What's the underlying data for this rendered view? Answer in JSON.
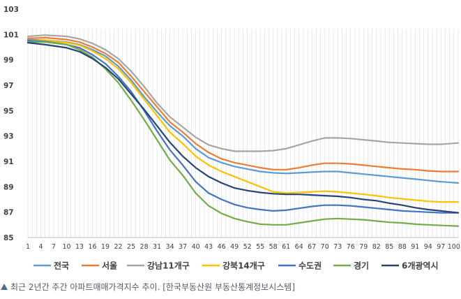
{
  "caption": {
    "text": "최근 2년간 주간 아파트매매가격지수 추이. [한국부동산원 부동산통계정보시스템]"
  },
  "chart_data": {
    "type": "line",
    "title": "",
    "xlabel": "",
    "ylabel": "",
    "xlim": [
      1,
      101
    ],
    "ylim": [
      85,
      103
    ],
    "y_ticks": [
      85,
      87,
      89,
      91,
      93,
      95,
      97,
      99,
      101,
      103
    ],
    "x_ticks": [
      1,
      4,
      7,
      10,
      13,
      16,
      19,
      22,
      25,
      28,
      31,
      34,
      37,
      40,
      43,
      46,
      49,
      52,
      55,
      58,
      61,
      64,
      67,
      70,
      73,
      76,
      79,
      82,
      85,
      88,
      91,
      94,
      97,
      100
    ],
    "grid": "vertical",
    "legend": "bottom",
    "series": [
      {
        "name": "전국",
        "color": "#5b9bd5",
        "points": [
          [
            1,
            100.6
          ],
          [
            5,
            100.55
          ],
          [
            10,
            100.4
          ],
          [
            13,
            100.2
          ],
          [
            16,
            99.8
          ],
          [
            19,
            99.3
          ],
          [
            22,
            98.5
          ],
          [
            25,
            97.4
          ],
          [
            28,
            96.1
          ],
          [
            31,
            94.9
          ],
          [
            34,
            93.8
          ],
          [
            37,
            93.0
          ],
          [
            40,
            92.0
          ],
          [
            43,
            91.3
          ],
          [
            46,
            90.9
          ],
          [
            49,
            90.6
          ],
          [
            52,
            90.4
          ],
          [
            55,
            90.2
          ],
          [
            58,
            90.1
          ],
          [
            61,
            90.05
          ],
          [
            64,
            90.1
          ],
          [
            67,
            90.15
          ],
          [
            70,
            90.2
          ],
          [
            73,
            90.2
          ],
          [
            76,
            90.1
          ],
          [
            79,
            90.0
          ],
          [
            82,
            89.9
          ],
          [
            85,
            89.8
          ],
          [
            88,
            89.7
          ],
          [
            91,
            89.6
          ],
          [
            94,
            89.5
          ],
          [
            97,
            89.4
          ],
          [
            101,
            89.3
          ]
        ]
      },
      {
        "name": "서울",
        "color": "#ed7d31",
        "points": [
          [
            1,
            100.7
          ],
          [
            5,
            100.75
          ],
          [
            10,
            100.6
          ],
          [
            13,
            100.4
          ],
          [
            16,
            100.0
          ],
          [
            19,
            99.5
          ],
          [
            22,
            98.8
          ],
          [
            25,
            97.7
          ],
          [
            28,
            96.5
          ],
          [
            31,
            95.3
          ],
          [
            34,
            94.1
          ],
          [
            37,
            93.3
          ],
          [
            40,
            92.4
          ],
          [
            43,
            91.7
          ],
          [
            46,
            91.2
          ],
          [
            49,
            90.9
          ],
          [
            52,
            90.7
          ],
          [
            55,
            90.5
          ],
          [
            58,
            90.35
          ],
          [
            61,
            90.35
          ],
          [
            64,
            90.5
          ],
          [
            67,
            90.7
          ],
          [
            70,
            90.85
          ],
          [
            73,
            90.85
          ],
          [
            76,
            90.8
          ],
          [
            79,
            90.7
          ],
          [
            82,
            90.6
          ],
          [
            85,
            90.5
          ],
          [
            88,
            90.4
          ],
          [
            91,
            90.35
          ],
          [
            94,
            90.25
          ],
          [
            97,
            90.2
          ],
          [
            101,
            90.2
          ]
        ]
      },
      {
        "name": "강남11개구",
        "color": "#a5a5a5",
        "points": [
          [
            1,
            100.85
          ],
          [
            5,
            100.95
          ],
          [
            10,
            100.85
          ],
          [
            13,
            100.65
          ],
          [
            16,
            100.3
          ],
          [
            19,
            99.8
          ],
          [
            22,
            99.1
          ],
          [
            25,
            98.1
          ],
          [
            28,
            96.9
          ],
          [
            31,
            95.6
          ],
          [
            34,
            94.5
          ],
          [
            37,
            93.7
          ],
          [
            40,
            92.9
          ],
          [
            43,
            92.3
          ],
          [
            46,
            92.0
          ],
          [
            49,
            91.8
          ],
          [
            52,
            91.8
          ],
          [
            55,
            91.8
          ],
          [
            58,
            91.85
          ],
          [
            61,
            92.0
          ],
          [
            64,
            92.3
          ],
          [
            67,
            92.6
          ],
          [
            70,
            92.85
          ],
          [
            73,
            92.85
          ],
          [
            76,
            92.8
          ],
          [
            79,
            92.7
          ],
          [
            82,
            92.6
          ],
          [
            85,
            92.5
          ],
          [
            88,
            92.45
          ],
          [
            91,
            92.4
          ],
          [
            94,
            92.35
          ],
          [
            97,
            92.35
          ],
          [
            101,
            92.45
          ]
        ]
      },
      {
        "name": "강북14개구",
        "color": "#ffc000",
        "points": [
          [
            1,
            100.5
          ],
          [
            5,
            100.55
          ],
          [
            10,
            100.35
          ],
          [
            13,
            100.15
          ],
          [
            16,
            99.7
          ],
          [
            19,
            99.1
          ],
          [
            22,
            98.3
          ],
          [
            25,
            97.2
          ],
          [
            28,
            95.9
          ],
          [
            31,
            94.6
          ],
          [
            34,
            93.3
          ],
          [
            37,
            92.4
          ],
          [
            40,
            91.4
          ],
          [
            43,
            90.7
          ],
          [
            46,
            90.2
          ],
          [
            49,
            89.8
          ],
          [
            52,
            89.4
          ],
          [
            55,
            89.0
          ],
          [
            58,
            88.6
          ],
          [
            61,
            88.5
          ],
          [
            64,
            88.55
          ],
          [
            67,
            88.6
          ],
          [
            70,
            88.65
          ],
          [
            73,
            88.6
          ],
          [
            76,
            88.5
          ],
          [
            79,
            88.4
          ],
          [
            82,
            88.3
          ],
          [
            85,
            88.15
          ],
          [
            88,
            88.05
          ],
          [
            91,
            87.95
          ],
          [
            94,
            87.85
          ],
          [
            97,
            87.8
          ],
          [
            101,
            87.8
          ]
        ]
      },
      {
        "name": "수도권",
        "color": "#4472c4",
        "points": [
          [
            1,
            100.5
          ],
          [
            5,
            100.45
          ],
          [
            10,
            100.2
          ],
          [
            13,
            99.95
          ],
          [
            16,
            99.4
          ],
          [
            19,
            98.7
          ],
          [
            22,
            97.7
          ],
          [
            25,
            96.5
          ],
          [
            28,
            95.0
          ],
          [
            31,
            93.4
          ],
          [
            34,
            91.9
          ],
          [
            37,
            90.7
          ],
          [
            40,
            89.4
          ],
          [
            43,
            88.5
          ],
          [
            46,
            88.0
          ],
          [
            49,
            87.6
          ],
          [
            52,
            87.35
          ],
          [
            55,
            87.2
          ],
          [
            58,
            87.1
          ],
          [
            61,
            87.15
          ],
          [
            64,
            87.3
          ],
          [
            67,
            87.45
          ],
          [
            70,
            87.55
          ],
          [
            73,
            87.55
          ],
          [
            76,
            87.5
          ],
          [
            79,
            87.4
          ],
          [
            82,
            87.3
          ],
          [
            85,
            87.2
          ],
          [
            88,
            87.1
          ],
          [
            91,
            87.05
          ],
          [
            94,
            87.0
          ],
          [
            97,
            86.95
          ],
          [
            101,
            86.95
          ]
        ]
      },
      {
        "name": "경기",
        "color": "#70ad47",
        "points": [
          [
            1,
            100.4
          ],
          [
            5,
            100.4
          ],
          [
            10,
            100.2
          ],
          [
            13,
            99.8
          ],
          [
            16,
            99.2
          ],
          [
            19,
            98.3
          ],
          [
            22,
            97.2
          ],
          [
            25,
            95.8
          ],
          [
            28,
            94.3
          ],
          [
            31,
            92.7
          ],
          [
            34,
            91.1
          ],
          [
            37,
            89.9
          ],
          [
            40,
            88.5
          ],
          [
            43,
            87.5
          ],
          [
            46,
            86.9
          ],
          [
            49,
            86.5
          ],
          [
            52,
            86.25
          ],
          [
            55,
            86.05
          ],
          [
            58,
            86.0
          ],
          [
            61,
            86.0
          ],
          [
            64,
            86.15
          ],
          [
            67,
            86.3
          ],
          [
            70,
            86.45
          ],
          [
            73,
            86.5
          ],
          [
            76,
            86.45
          ],
          [
            79,
            86.4
          ],
          [
            82,
            86.3
          ],
          [
            85,
            86.2
          ],
          [
            88,
            86.15
          ],
          [
            91,
            86.05
          ],
          [
            94,
            86.0
          ],
          [
            97,
            85.95
          ],
          [
            101,
            85.9
          ]
        ]
      },
      {
        "name": "6개광역시",
        "color": "#264478",
        "points": [
          [
            1,
            100.35
          ],
          [
            5,
            100.2
          ],
          [
            10,
            99.95
          ],
          [
            13,
            99.65
          ],
          [
            16,
            99.1
          ],
          [
            19,
            98.4
          ],
          [
            22,
            97.5
          ],
          [
            25,
            96.3
          ],
          [
            28,
            95.1
          ],
          [
            31,
            93.8
          ],
          [
            34,
            92.5
          ],
          [
            37,
            91.4
          ],
          [
            40,
            90.5
          ],
          [
            43,
            89.8
          ],
          [
            46,
            89.3
          ],
          [
            49,
            88.9
          ],
          [
            52,
            88.7
          ],
          [
            55,
            88.55
          ],
          [
            58,
            88.45
          ],
          [
            61,
            88.4
          ],
          [
            64,
            88.4
          ],
          [
            67,
            88.35
          ],
          [
            70,
            88.3
          ],
          [
            73,
            88.25
          ],
          [
            76,
            88.15
          ],
          [
            79,
            88.0
          ],
          [
            82,
            87.9
          ],
          [
            85,
            87.7
          ],
          [
            88,
            87.55
          ],
          [
            91,
            87.35
          ],
          [
            94,
            87.2
          ],
          [
            97,
            87.1
          ],
          [
            101,
            86.95
          ]
        ]
      }
    ]
  }
}
